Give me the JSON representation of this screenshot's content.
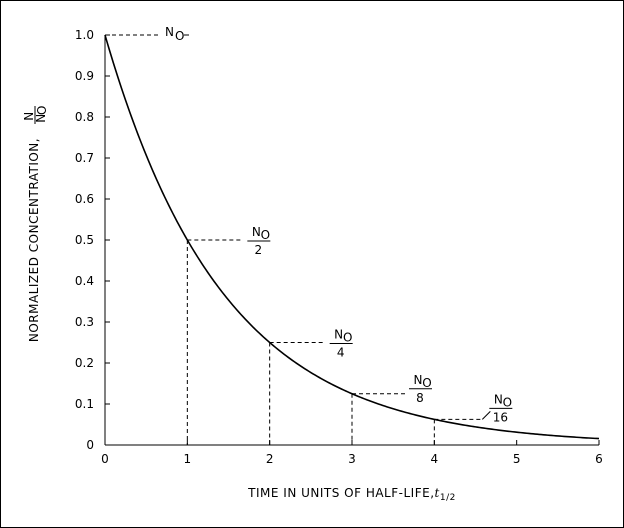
{
  "chart_data": {
    "type": "line",
    "title": "",
    "xlabel": "TIME IN UNITS OF HALF-LIFE,",
    "xlabel_symbol": "t",
    "xlabel_subscript": "1/2",
    "ylabel": "NORMALIZED CONCENTRATION,",
    "ylabel_fraction": {
      "numerator": "N",
      "denominator": "N",
      "denominator_subscript": "O"
    },
    "xlim": [
      0,
      6
    ],
    "ylim": [
      0,
      1.0
    ],
    "x_ticks": [
      "0",
      "1",
      "2",
      "3",
      "4",
      "5",
      "6"
    ],
    "y_ticks": [
      "0",
      "0.1",
      "0.2",
      "0.3",
      "0.4",
      "0.5",
      "0.6",
      "0.7",
      "0.8",
      "0.9",
      "1.0"
    ],
    "grid": false,
    "series": [
      {
        "model": "exponential-decay",
        "start": 1.0,
        "half_life": 1,
        "x_start": 0,
        "x_end": 6
      }
    ],
    "annotations": [
      {
        "x": 0,
        "y": 1.0,
        "numerator": "N",
        "subscript": "O",
        "denominator": ""
      },
      {
        "x": 1,
        "y": 0.5,
        "numerator": "N",
        "subscript": "O",
        "denominator": "2"
      },
      {
        "x": 2,
        "y": 0.25,
        "numerator": "N",
        "subscript": "O",
        "denominator": "4"
      },
      {
        "x": 3,
        "y": 0.125,
        "numerator": "N",
        "subscript": "O",
        "denominator": "8"
      },
      {
        "x": 4,
        "y": 0.0625,
        "numerator": "N",
        "subscript": "O",
        "denominator": "16"
      }
    ]
  }
}
